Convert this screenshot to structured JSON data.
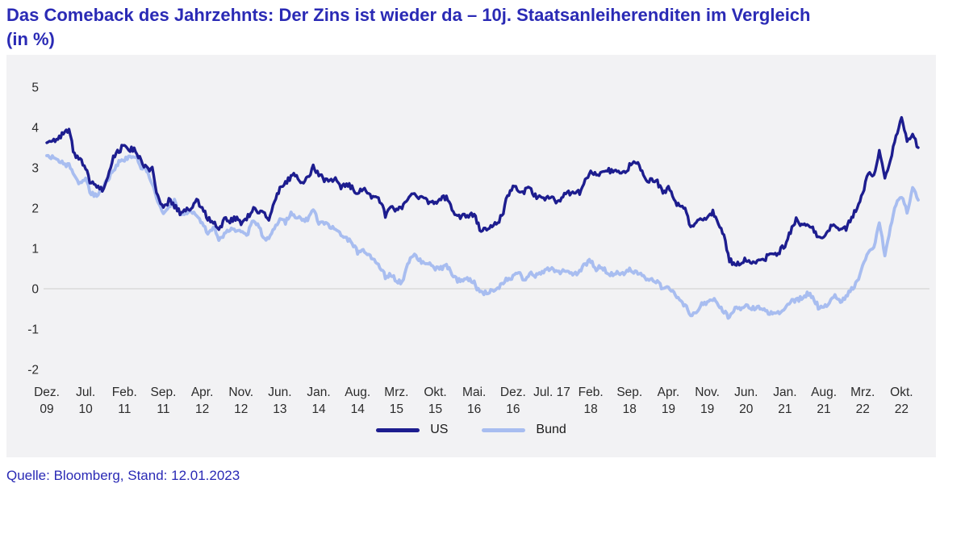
{
  "page": {
    "title_line1": "Das Comeback des Jahrzehnts: Der Zins ist wieder da – 10j. Staatsanleiherenditen im Vergleich",
    "title_line2": "(in %)",
    "source": "Quelle: Bloomberg, Stand: 12.01.2023"
  },
  "colors": {
    "title": "#2a2ab5",
    "source": "#2a2ab5",
    "panel_bg": "#f2f2f4",
    "zero_line": "#d9d9d9",
    "axis_text": "#2b2b2b",
    "us_line": "#1d1d8f",
    "bund_line": "#a8bdf0"
  },
  "chart_data": {
    "type": "line",
    "title": "Das Comeback des Jahrzehnts: Der Zins ist wieder da – 10j. Staatsanleiherenditen im Vergleich (in %)",
    "x_unit": "monthly, Dez. 2009 bis Jan. 2023",
    "ylim": [
      -2,
      5
    ],
    "grid": "zero-line-only",
    "legend_position": "bottom-center",
    "legend": [
      "US",
      "Bund"
    ],
    "y_ticks": [
      5,
      4,
      3,
      2,
      1,
      0,
      -1,
      -2
    ],
    "x_ticks": [
      {
        "month": "Dez.",
        "year": "09"
      },
      {
        "month": "Jul.",
        "year": "10"
      },
      {
        "month": "Feb.",
        "year": "11"
      },
      {
        "month": "Sep.",
        "year": "11"
      },
      {
        "month": "Apr.",
        "year": "12"
      },
      {
        "month": "Nov.",
        "year": "12"
      },
      {
        "month": "Jun.",
        "year": "13"
      },
      {
        "month": "Jan.",
        "year": "14"
      },
      {
        "month": "Aug.",
        "year": "14"
      },
      {
        "month": "Mrz.",
        "year": "15"
      },
      {
        "month": "Okt.",
        "year": "15"
      },
      {
        "month": "Mai.",
        "year": "16"
      },
      {
        "month": "Dez.",
        "year": "16"
      },
      {
        "month": "Jul. 17",
        "year": ""
      },
      {
        "month": "Feb.",
        "year": "18"
      },
      {
        "month": "Sep.",
        "year": "18"
      },
      {
        "month": "Apr.",
        "year": "19"
      },
      {
        "month": "Nov.",
        "year": "19"
      },
      {
        "month": "Jun.",
        "year": "20"
      },
      {
        "month": "Jan.",
        "year": "21"
      },
      {
        "month": "Aug.",
        "year": "21"
      },
      {
        "month": "Mrz.",
        "year": "22"
      },
      {
        "month": "Okt.",
        "year": "22"
      }
    ],
    "tick_month_interval": 7,
    "series": [
      {
        "name": "US",
        "color": "#1d1d8f",
        "values": [
          3.62,
          3.72,
          3.68,
          3.85,
          3.9,
          3.3,
          3.2,
          2.95,
          2.6,
          2.55,
          2.45,
          2.8,
          3.3,
          3.4,
          3.6,
          3.45,
          3.45,
          3.15,
          3.0,
          2.95,
          2.25,
          1.95,
          2.2,
          2.05,
          1.9,
          1.95,
          2.0,
          2.2,
          2.0,
          1.75,
          1.65,
          1.5,
          1.7,
          1.7,
          1.75,
          1.65,
          1.75,
          1.95,
          1.95,
          1.9,
          1.7,
          2.1,
          2.5,
          2.6,
          2.8,
          2.85,
          2.6,
          2.75,
          3.0,
          2.85,
          2.7,
          2.7,
          2.7,
          2.5,
          2.6,
          2.5,
          2.4,
          2.5,
          2.3,
          2.3,
          2.2,
          1.8,
          2.0,
          1.95,
          2.0,
          2.2,
          2.4,
          2.3,
          2.2,
          2.15,
          2.1,
          2.25,
          2.25,
          2.0,
          1.75,
          1.85,
          1.8,
          1.85,
          1.5,
          1.45,
          1.55,
          1.6,
          1.8,
          2.3,
          2.5,
          2.45,
          2.4,
          2.5,
          2.3,
          2.25,
          2.2,
          2.3,
          2.15,
          2.3,
          2.4,
          2.35,
          2.4,
          2.7,
          2.9,
          2.8,
          2.95,
          2.95,
          2.9,
          2.95,
          2.85,
          3.05,
          3.15,
          3.0,
          2.7,
          2.7,
          2.65,
          2.4,
          2.5,
          2.25,
          2.0,
          2.05,
          1.5,
          1.7,
          1.7,
          1.8,
          1.9,
          1.6,
          1.3,
          0.7,
          0.62,
          0.66,
          0.73,
          0.58,
          0.68,
          0.67,
          0.85,
          0.86,
          0.92,
          1.1,
          1.4,
          1.72,
          1.6,
          1.6,
          1.48,
          1.25,
          1.3,
          1.5,
          1.57,
          1.45,
          1.5,
          1.8,
          1.95,
          2.35,
          2.9,
          2.85,
          3.4,
          2.7,
          3.15,
          3.8,
          4.2,
          3.7,
          3.85,
          3.5
        ]
      },
      {
        "name": "Bund",
        "color": "#a8bdf0",
        "values": [
          3.3,
          3.25,
          3.15,
          3.1,
          3.05,
          2.75,
          2.6,
          2.7,
          2.35,
          2.3,
          2.5,
          2.7,
          2.95,
          3.15,
          3.2,
          3.25,
          3.3,
          3.0,
          2.95,
          2.6,
          2.2,
          1.85,
          2.0,
          2.2,
          1.85,
          1.85,
          1.9,
          1.8,
          1.65,
          1.35,
          1.55,
          1.25,
          1.35,
          1.45,
          1.45,
          1.4,
          1.3,
          1.65,
          1.6,
          1.3,
          1.2,
          1.5,
          1.75,
          1.65,
          1.85,
          1.8,
          1.7,
          1.7,
          1.95,
          1.65,
          1.6,
          1.55,
          1.45,
          1.35,
          1.25,
          1.15,
          0.9,
          0.95,
          0.85,
          0.7,
          0.55,
          0.3,
          0.35,
          0.2,
          0.15,
          0.6,
          0.85,
          0.7,
          0.65,
          0.6,
          0.5,
          0.5,
          0.6,
          0.35,
          0.2,
          0.2,
          0.25,
          0.15,
          -0.1,
          -0.1,
          -0.05,
          -0.05,
          0.15,
          0.25,
          0.3,
          0.45,
          0.2,
          0.4,
          0.3,
          0.4,
          0.45,
          0.55,
          0.4,
          0.45,
          0.4,
          0.35,
          0.43,
          0.6,
          0.7,
          0.5,
          0.55,
          0.4,
          0.35,
          0.4,
          0.35,
          0.5,
          0.4,
          0.35,
          0.25,
          0.2,
          0.15,
          0.0,
          0.05,
          -0.1,
          -0.3,
          -0.4,
          -0.68,
          -0.55,
          -0.4,
          -0.35,
          -0.25,
          -0.4,
          -0.55,
          -0.75,
          -0.47,
          -0.5,
          -0.42,
          -0.5,
          -0.45,
          -0.52,
          -0.6,
          -0.57,
          -0.58,
          -0.5,
          -0.3,
          -0.3,
          -0.22,
          -0.13,
          -0.2,
          -0.45,
          -0.47,
          -0.32,
          -0.12,
          -0.35,
          -0.2,
          0.0,
          0.17,
          0.55,
          0.9,
          1.0,
          1.65,
          0.85,
          1.5,
          2.1,
          2.3,
          1.9,
          2.5,
          2.2
        ]
      }
    ]
  }
}
